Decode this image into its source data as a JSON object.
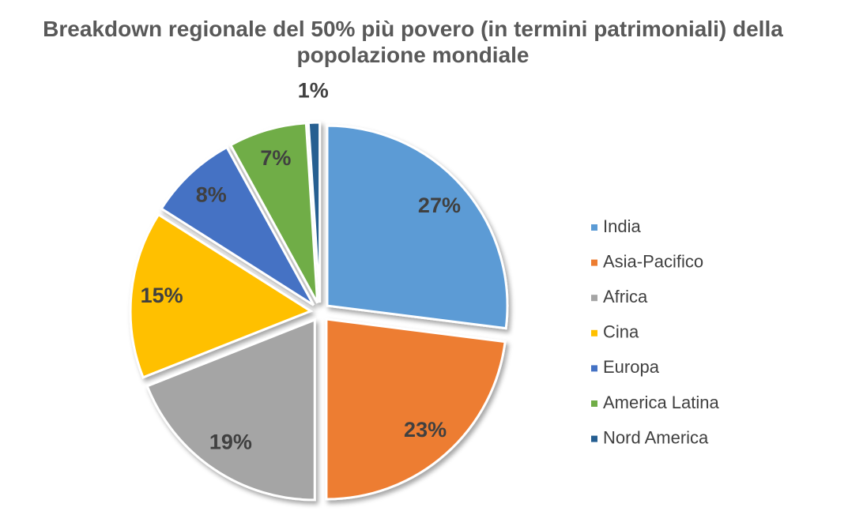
{
  "chart_data": {
    "type": "pie",
    "title": "Breakdown regionale del 50% più povero (in termini patrimoniali) della popolazione mondiale",
    "categories": [
      "India",
      "Asia-Pacifico",
      "Africa",
      "Cina",
      "Europa",
      "America Latina",
      "Nord America"
    ],
    "values": [
      27,
      23,
      19,
      15,
      8,
      7,
      1
    ],
    "value_labels": [
      "27%",
      "23%",
      "19%",
      "15%",
      "8%",
      "7%",
      "1%"
    ],
    "colors": [
      "#5b9bd5",
      "#ed7d31",
      "#a5a5a5",
      "#ffc000",
      "#4472c4",
      "#70ad47",
      "#255e91"
    ],
    "legend": "right"
  }
}
